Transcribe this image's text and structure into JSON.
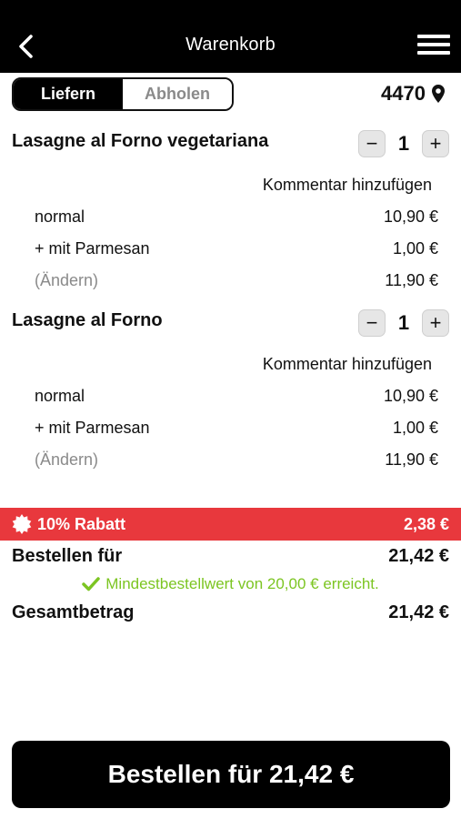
{
  "header": {
    "title": "Warenkorb",
    "back_icon": "chevron-left-icon",
    "menu_icon": "hamburger-menu-icon"
  },
  "delivery_toggle": {
    "options": [
      "Liefern",
      "Abholen"
    ],
    "selected": "Liefern"
  },
  "location": {
    "zip": "4470",
    "icon": "location-pin-icon"
  },
  "items": [
    {
      "name": "Lasagne al Forno vegetariana",
      "quantity": "1",
      "comment_link": "Kommentar hinzufügen",
      "options": [
        {
          "label": "normal",
          "price": "10,90 €"
        },
        {
          "label": "+ mit Parmesan",
          "price": "1,00 €"
        }
      ],
      "change_label": "(Ändern)",
      "total": "11,90 €"
    },
    {
      "name": "Lasagne al Forno",
      "quantity": "1",
      "comment_link": "Kommentar hinzufügen",
      "options": [
        {
          "label": "normal",
          "price": "10,90 €"
        },
        {
          "label": "+ mit Parmesan",
          "price": "1,00 €"
        }
      ],
      "change_label": "(Ändern)",
      "total": "11,90 €"
    }
  ],
  "quantity_controls": {
    "minus": "−",
    "plus": "+"
  },
  "discount": {
    "label": "10% Rabatt",
    "amount": "2,38 €",
    "icon": "discount-badge-icon",
    "color": "#e8383d"
  },
  "summary": {
    "order_for_label": "Bestellen für",
    "order_for_amount": "21,42 €",
    "min_order_note": "Mindestbestellwert von 20,00 € erreicht.",
    "note_icon": "checkmark-icon",
    "note_color": "#7cc522",
    "total_label": "Gesamtbetrag",
    "total_amount": "21,42 €"
  },
  "order_button": {
    "label": "Bestellen für 21,42 €"
  }
}
